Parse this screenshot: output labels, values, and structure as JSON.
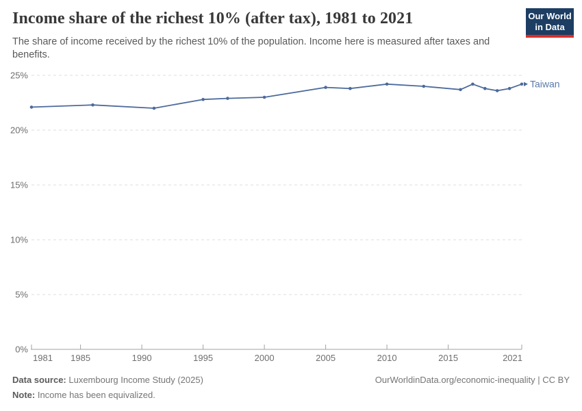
{
  "header": {
    "title": "Income share of the richest 10% (after tax), 1981 to 2021",
    "subtitle": "The share of income received by the richest 10% of the population. Income here is measured after taxes and benefits."
  },
  "logo": {
    "line1": "Our World",
    "line2": "in Data"
  },
  "chart_data": {
    "type": "line",
    "title": "Income share of the richest 10% (after tax), 1981 to 2021",
    "entity_label": "Taiwan",
    "x": [
      1981,
      1986,
      1991,
      1995,
      1997,
      2000,
      2005,
      2007,
      2010,
      2013,
      2016,
      2017,
      2018,
      2019,
      2020,
      2021
    ],
    "series": [
      {
        "name": "Taiwan",
        "values": [
          22.1,
          22.3,
          22.0,
          22.8,
          22.9,
          23.0,
          23.9,
          23.8,
          24.2,
          24.0,
          23.7,
          24.2,
          23.8,
          23.6,
          23.8,
          24.2
        ]
      }
    ],
    "xlabel": "",
    "ylabel": "",
    "xlim": [
      1981,
      2021
    ],
    "ylim": [
      0,
      25
    ],
    "xticks": [
      1981,
      1985,
      1990,
      1995,
      2000,
      2005,
      2010,
      2015,
      2021
    ],
    "yticks": [
      0,
      5,
      10,
      15,
      20,
      25
    ],
    "ytick_suffix": "%",
    "grid": "horizontal-dashed",
    "legend_position": "end-of-line-label"
  },
  "colors": {
    "line": "#4c6a9c",
    "entity_label": "#5b7aa7",
    "grid": "#dcdcdc",
    "axis": "#a1a1a1",
    "tick_text": "#6e6e6e",
    "logo_bg": "#1d3d63",
    "logo_bar": "#dc2e27"
  },
  "footer": {
    "source_label": "Data source:",
    "source_text": " Luxembourg Income Study (2025)",
    "link_text": "OurWorldinData.org/economic-inequality | CC BY",
    "note_label": "Note:",
    "note_text": " Income has been equivalized."
  }
}
